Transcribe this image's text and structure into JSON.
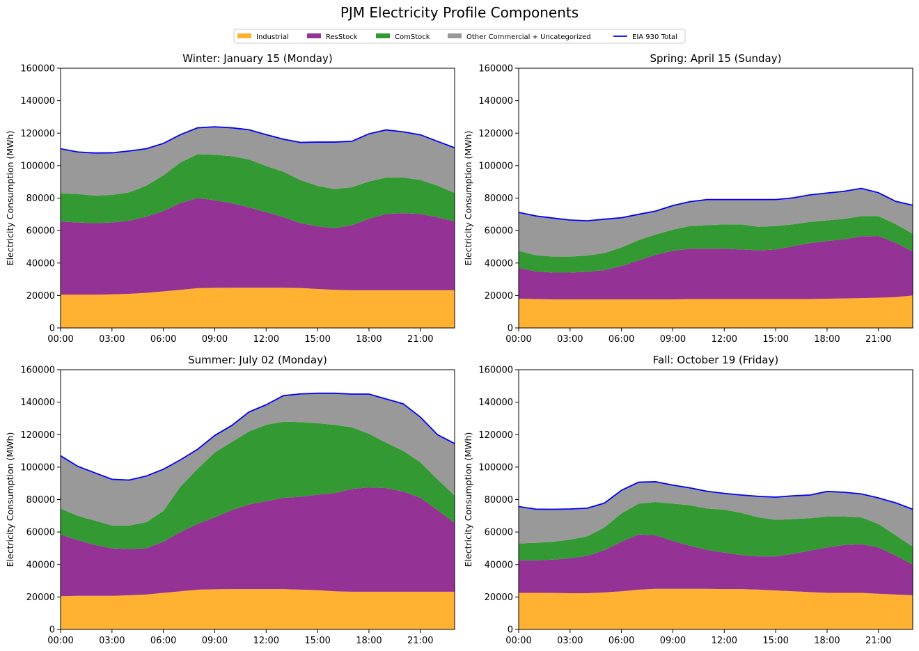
{
  "figure_title": "PJM Electricity Profile Components",
  "legend": [
    {
      "label": "Industrial",
      "color": "#FFB232",
      "kind": "patch"
    },
    {
      "label": "ResStock",
      "color": "#943295",
      "kind": "patch"
    },
    {
      "label": "ComStock",
      "color": "#339933",
      "kind": "patch"
    },
    {
      "label": "Other Commercial + Uncategorized",
      "color": "#999999",
      "kind": "patch"
    },
    {
      "label": "EIA 930 Total",
      "color": "#0000FF",
      "kind": "line"
    }
  ],
  "chart_data": [
    {
      "type": "area",
      "stacked": true,
      "title": "Winter: January 15 (Monday)",
      "ylabel": "Electricity Consumption (MWh)",
      "xlabel": "",
      "x_ticks": [
        "00:00",
        "03:00",
        "06:00",
        "09:00",
        "12:00",
        "15:00",
        "18:00",
        "21:00"
      ],
      "y_ticks": [
        "0",
        "20000",
        "40000",
        "60000",
        "80000",
        "100000",
        "120000",
        "140000",
        "160000"
      ],
      "ylim": [
        0,
        160000
      ],
      "x_hours": [
        0,
        1,
        2,
        3,
        4,
        5,
        6,
        7,
        8,
        9,
        10,
        11,
        12,
        13,
        14,
        15,
        16,
        17,
        18,
        19,
        20,
        21,
        22,
        23
      ],
      "series": [
        {
          "name": "Industrial",
          "values": [
            20500,
            20500,
            20500,
            20700,
            21000,
            21600,
            22500,
            23500,
            24500,
            24700,
            24800,
            24800,
            24800,
            24800,
            24600,
            24000,
            23500,
            23200,
            23200,
            23200,
            23200,
            23200,
            23200,
            23200
          ]
        },
        {
          "name": "ResStock",
          "values": [
            45000,
            44500,
            44000,
            44300,
            45000,
            47000,
            49500,
            53500,
            55500,
            54000,
            52000,
            49500,
            46500,
            43500,
            40000,
            38500,
            38000,
            40000,
            44000,
            47000,
            47500,
            47000,
            45000,
            42500
          ]
        },
        {
          "name": "ComStock",
          "values": [
            17500,
            17500,
            17000,
            17000,
            17500,
            19000,
            22000,
            25000,
            27000,
            28000,
            29000,
            29500,
            28500,
            28000,
            26500,
            25000,
            24000,
            23500,
            23000,
            22500,
            22000,
            21000,
            19500,
            17500
          ]
        },
        {
          "name": "Other Commercial + Uncategorized",
          "values": [
            27400,
            25900,
            26300,
            25900,
            25500,
            22800,
            19700,
            17100,
            16300,
            17200,
            17500,
            18300,
            19300,
            20000,
            23200,
            27000,
            29000,
            28300,
            29400,
            29300,
            28100,
            27800,
            27300,
            27800
          ]
        }
      ],
      "total": {
        "name": "EIA 930 Total",
        "values": [
          110400,
          108400,
          107800,
          107900,
          109000,
          110400,
          113700,
          119100,
          123300,
          123900,
          123300,
          122100,
          119100,
          116300,
          114300,
          114500,
          114500,
          115000,
          119600,
          122000,
          120800,
          119000,
          115000,
          111000
        ]
      }
    },
    {
      "type": "area",
      "stacked": true,
      "title": "Spring: April 15 (Sunday)",
      "ylabel": "",
      "xlabel": "",
      "x_ticks": [
        "00:00",
        "03:00",
        "06:00",
        "09:00",
        "12:00",
        "15:00",
        "18:00",
        "21:00"
      ],
      "y_ticks": [
        "0",
        "20000",
        "40000",
        "60000",
        "80000",
        "100000",
        "120000",
        "140000",
        "160000"
      ],
      "ylim": [
        0,
        160000
      ],
      "x_hours": [
        0,
        1,
        2,
        3,
        4,
        5,
        6,
        7,
        8,
        9,
        10,
        11,
        12,
        13,
        14,
        15,
        16,
        17,
        18,
        19,
        20,
        21,
        22,
        23
      ],
      "series": [
        {
          "name": "Industrial",
          "values": [
            18000,
            17800,
            17600,
            17600,
            17600,
            17600,
            17600,
            17600,
            17600,
            17600,
            17800,
            17800,
            17800,
            17800,
            17800,
            17800,
            17800,
            17800,
            18000,
            18200,
            18400,
            18600,
            19000,
            20000
          ]
        },
        {
          "name": "ResStock",
          "values": [
            19000,
            17000,
            16500,
            16500,
            17000,
            18000,
            20500,
            24000,
            27500,
            30000,
            31000,
            31000,
            31000,
            30500,
            30000,
            30500,
            32500,
            34500,
            35500,
            36500,
            38000,
            38000,
            33500,
            27000
          ]
        },
        {
          "name": "ComStock",
          "values": [
            10500,
            10000,
            9800,
            9800,
            10000,
            10500,
            11500,
            12500,
            12500,
            13000,
            14000,
            14500,
            15000,
            15500,
            14500,
            14500,
            13500,
            13000,
            12800,
            12500,
            12500,
            12300,
            11500,
            11000
          ]
        },
        {
          "name": "Other Commercial + Uncategorized",
          "values": [
            23700,
            24200,
            23800,
            22600,
            21400,
            20900,
            18300,
            15900,
            14400,
            14800,
            15000,
            15800,
            15300,
            15300,
            16800,
            16300,
            16300,
            16700,
            16800,
            17000,
            17100,
            14400,
            14000,
            17600
          ]
        }
      ],
      "total": {
        "name": "EIA 930 Total",
        "values": [
          71200,
          69000,
          67700,
          66500,
          66000,
          67000,
          67900,
          70000,
          72000,
          75400,
          77800,
          79100,
          79100,
          79100,
          79100,
          79100,
          80100,
          82000,
          83100,
          84200,
          86000,
          83300,
          78000,
          75600
        ]
      }
    },
    {
      "type": "area",
      "stacked": true,
      "title": "Summer: July 02 (Monday)",
      "ylabel": "Electricity Consumption (MWh)",
      "xlabel": "",
      "x_ticks": [
        "00:00",
        "03:00",
        "06:00",
        "09:00",
        "12:00",
        "15:00",
        "18:00",
        "21:00"
      ],
      "y_ticks": [
        "0",
        "20000",
        "40000",
        "60000",
        "80000",
        "100000",
        "120000",
        "140000",
        "160000"
      ],
      "ylim": [
        0,
        160000
      ],
      "x_hours": [
        0,
        1,
        2,
        3,
        4,
        5,
        6,
        7,
        8,
        9,
        10,
        11,
        12,
        13,
        14,
        15,
        16,
        17,
        18,
        19,
        20,
        21,
        22,
        23
      ],
      "series": [
        {
          "name": "Industrial",
          "values": [
            20500,
            20700,
            20700,
            20700,
            21000,
            21500,
            22500,
            23500,
            24500,
            24700,
            24800,
            24800,
            24800,
            24800,
            24500,
            24200,
            23500,
            23200,
            23200,
            23200,
            23200,
            23200,
            23200,
            23200
          ]
        },
        {
          "name": "ResStock",
          "values": [
            38000,
            34300,
            31300,
            29300,
            28500,
            28500,
            31500,
            36500,
            40500,
            44300,
            48700,
            52200,
            54200,
            56200,
            57200,
            58800,
            60500,
            63300,
            64300,
            63800,
            61800,
            57800,
            50300,
            42300
          ]
        },
        {
          "name": "ComStock",
          "values": [
            16000,
            15000,
            15000,
            14000,
            14500,
            16000,
            19000,
            28000,
            34000,
            40000,
            42000,
            45000,
            47000,
            47000,
            46000,
            44000,
            42000,
            38000,
            33000,
            28000,
            25000,
            22000,
            19000,
            17000
          ]
        },
        {
          "name": "Other Commercial + Uncategorized",
          "values": [
            32500,
            30500,
            29500,
            28500,
            28000,
            28500,
            25700,
            16500,
            12000,
            10500,
            10200,
            12000,
            12400,
            16000,
            17400,
            18500,
            19500,
            20500,
            24500,
            27000,
            29000,
            27800,
            27500,
            32000
          ]
        }
      ],
      "total": {
        "name": "EIA 930 Total",
        "values": [
          107000,
          100500,
          96500,
          92500,
          92000,
          94500,
          98700,
          104500,
          111000,
          119500,
          125700,
          134000,
          138400,
          144000,
          145100,
          145500,
          145500,
          145000,
          145000,
          142000,
          139000,
          130800,
          120000,
          114500
        ]
      }
    },
    {
      "type": "area",
      "stacked": true,
      "title": "Fall: October 19 (Friday)",
      "ylabel": "",
      "xlabel": "",
      "x_ticks": [
        "00:00",
        "03:00",
        "06:00",
        "09:00",
        "12:00",
        "15:00",
        "18:00",
        "21:00"
      ],
      "y_ticks": [
        "0",
        "20000",
        "40000",
        "60000",
        "80000",
        "100000",
        "120000",
        "140000",
        "160000"
      ],
      "ylim": [
        0,
        160000
      ],
      "x_hours": [
        0,
        1,
        2,
        3,
        4,
        5,
        6,
        7,
        8,
        9,
        10,
        11,
        12,
        13,
        14,
        15,
        16,
        17,
        18,
        19,
        20,
        21,
        22,
        23
      ],
      "series": [
        {
          "name": "Industrial",
          "values": [
            22500,
            22500,
            22500,
            22300,
            22300,
            22800,
            23500,
            24500,
            25000,
            25000,
            25000,
            25000,
            24800,
            24800,
            24500,
            24000,
            23500,
            23000,
            22500,
            22500,
            22500,
            22000,
            21500,
            21000
          ]
        },
        {
          "name": "ResStock",
          "values": [
            20000,
            20000,
            20500,
            21500,
            23000,
            26000,
            30500,
            34000,
            33000,
            29500,
            26500,
            24000,
            22500,
            21000,
            20500,
            21000,
            23000,
            25500,
            28000,
            29500,
            30000,
            28500,
            24000,
            19000
          ]
        },
        {
          "name": "ComStock",
          "values": [
            10500,
            10800,
            11000,
            11500,
            12000,
            14000,
            17500,
            19000,
            20500,
            23000,
            25000,
            25500,
            26500,
            26000,
            24000,
            22500,
            21500,
            20000,
            19000,
            17500,
            16500,
            14500,
            12500,
            11000
          ]
        },
        {
          "name": "Other Commercial + Uncategorized",
          "values": [
            22700,
            20800,
            20000,
            18900,
            17400,
            15000,
            14200,
            13200,
            12500,
            11400,
            10700,
            10600,
            10000,
            11000,
            13000,
            14000,
            14300,
            14300,
            15500,
            15000,
            14500,
            16000,
            20000,
            23000
          ]
        }
      ],
      "total": {
        "name": "EIA 930 Total",
        "values": [
          75700,
          74100,
          74000,
          74200,
          74700,
          77800,
          85700,
          90700,
          91000,
          88900,
          87200,
          85100,
          83800,
          82800,
          82000,
          81500,
          82300,
          82800,
          85000,
          84500,
          83500,
          81000,
          78000,
          74000
        ]
      }
    }
  ]
}
